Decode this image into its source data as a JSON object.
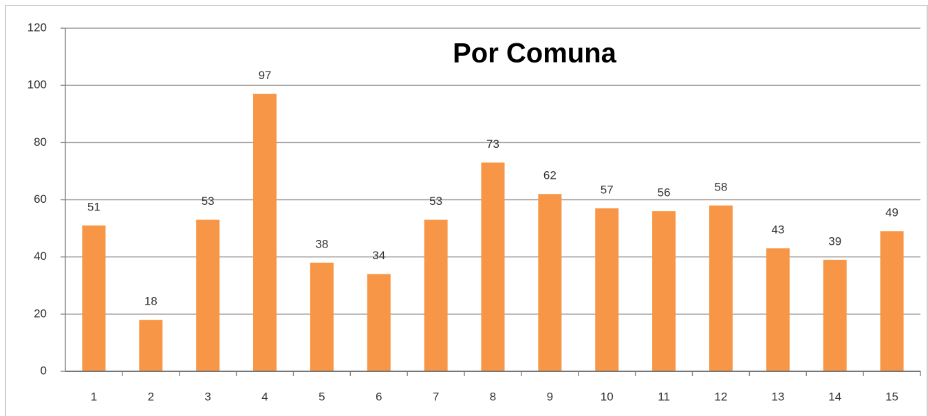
{
  "chart_data": {
    "type": "bar",
    "title": "Por Comuna",
    "categories": [
      "1",
      "2",
      "3",
      "4",
      "5",
      "6",
      "7",
      "8",
      "9",
      "10",
      "11",
      "12",
      "13",
      "14",
      "15"
    ],
    "values": [
      51,
      18,
      53,
      97,
      38,
      34,
      53,
      73,
      62,
      57,
      56,
      58,
      43,
      39,
      49
    ],
    "color": "#f79646",
    "ylim": [
      0,
      120
    ],
    "yticks": [
      0,
      20,
      40,
      60,
      80,
      100,
      120
    ],
    "grid": true
  }
}
